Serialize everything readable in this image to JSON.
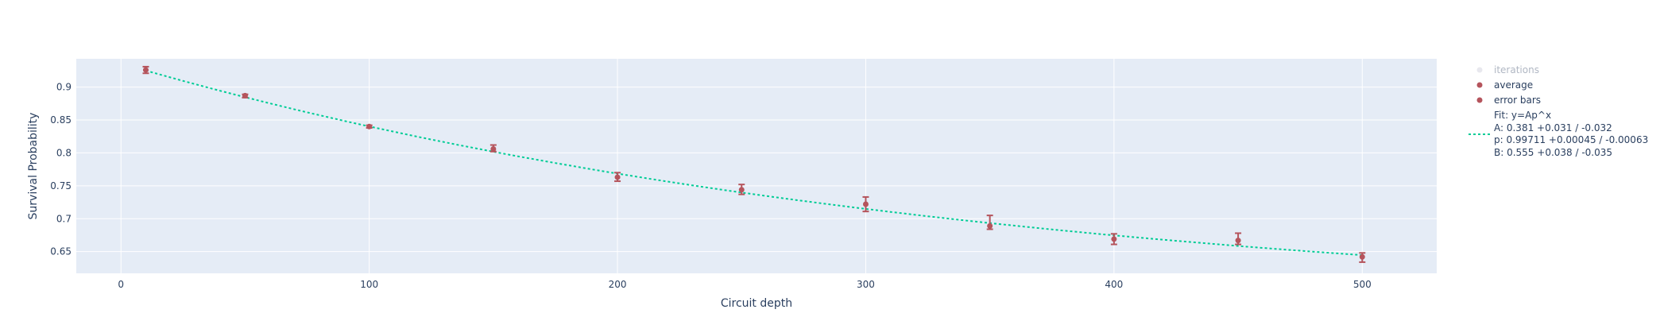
{
  "chart_data": {
    "type": "scatter",
    "xlabel": "Circuit depth",
    "ylabel": "Survival Probability",
    "xlim": [
      -18,
      530
    ],
    "ylim": [
      0.617,
      0.943
    ],
    "x_ticks": [
      0,
      100,
      200,
      300,
      400,
      500
    ],
    "x_tick_labels": [
      "0",
      "100",
      "200",
      "300",
      "400",
      "500"
    ],
    "y_ticks": [
      0.65,
      0.7,
      0.75,
      0.8,
      0.85,
      0.9
    ],
    "y_tick_labels": [
      "0.65",
      "0.7",
      "0.75",
      "0.8",
      "0.85",
      "0.9"
    ],
    "grid": true,
    "legend_position": "right",
    "colors": {
      "plot_background": "#e5ecf6",
      "grid": "#ffffff",
      "marker": "#b5545c",
      "fit_line": "#00cc96",
      "iterations_marker": "#e8e8ee",
      "iterations_text": "#b0b7c3"
    },
    "series": [
      {
        "name": "average",
        "x": [
          10,
          50,
          100,
          150,
          200,
          250,
          300,
          350,
          400,
          450,
          500
        ],
        "y": [
          0.926,
          0.887,
          0.84,
          0.806,
          0.763,
          0.744,
          0.722,
          0.689,
          0.669,
          0.667,
          0.642
        ]
      },
      {
        "name": "error bars",
        "x": [
          10,
          50,
          100,
          150,
          200,
          250,
          300,
          350,
          400,
          450,
          500
        ],
        "y": [
          0.926,
          0.887,
          0.84,
          0.806,
          0.763,
          0.744,
          0.722,
          0.689,
          0.669,
          0.667,
          0.642
        ],
        "error_plus": [
          0.005,
          0.002,
          0.002,
          0.006,
          0.007,
          0.008,
          0.011,
          0.016,
          0.008,
          0.011,
          0.006
        ],
        "error_minus": [
          0.005,
          0.003,
          0.002,
          0.004,
          0.006,
          0.007,
          0.011,
          0.005,
          0.008,
          0.006,
          0.008
        ]
      }
    ],
    "fit": {
      "model": "y=Ap^x+B",
      "A": 0.381,
      "p": 0.99711,
      "B": 0.555
    },
    "legend": {
      "iterations": "iterations",
      "average": "average",
      "error_bars": "error bars",
      "fit_lines": [
        "Fit: y=Ap^x",
        "A: 0.381 +0.031 / -0.032",
        "p: 0.99711 +0.00045 / -0.00063",
        "B: 0.555 +0.038 / -0.035"
      ]
    }
  }
}
